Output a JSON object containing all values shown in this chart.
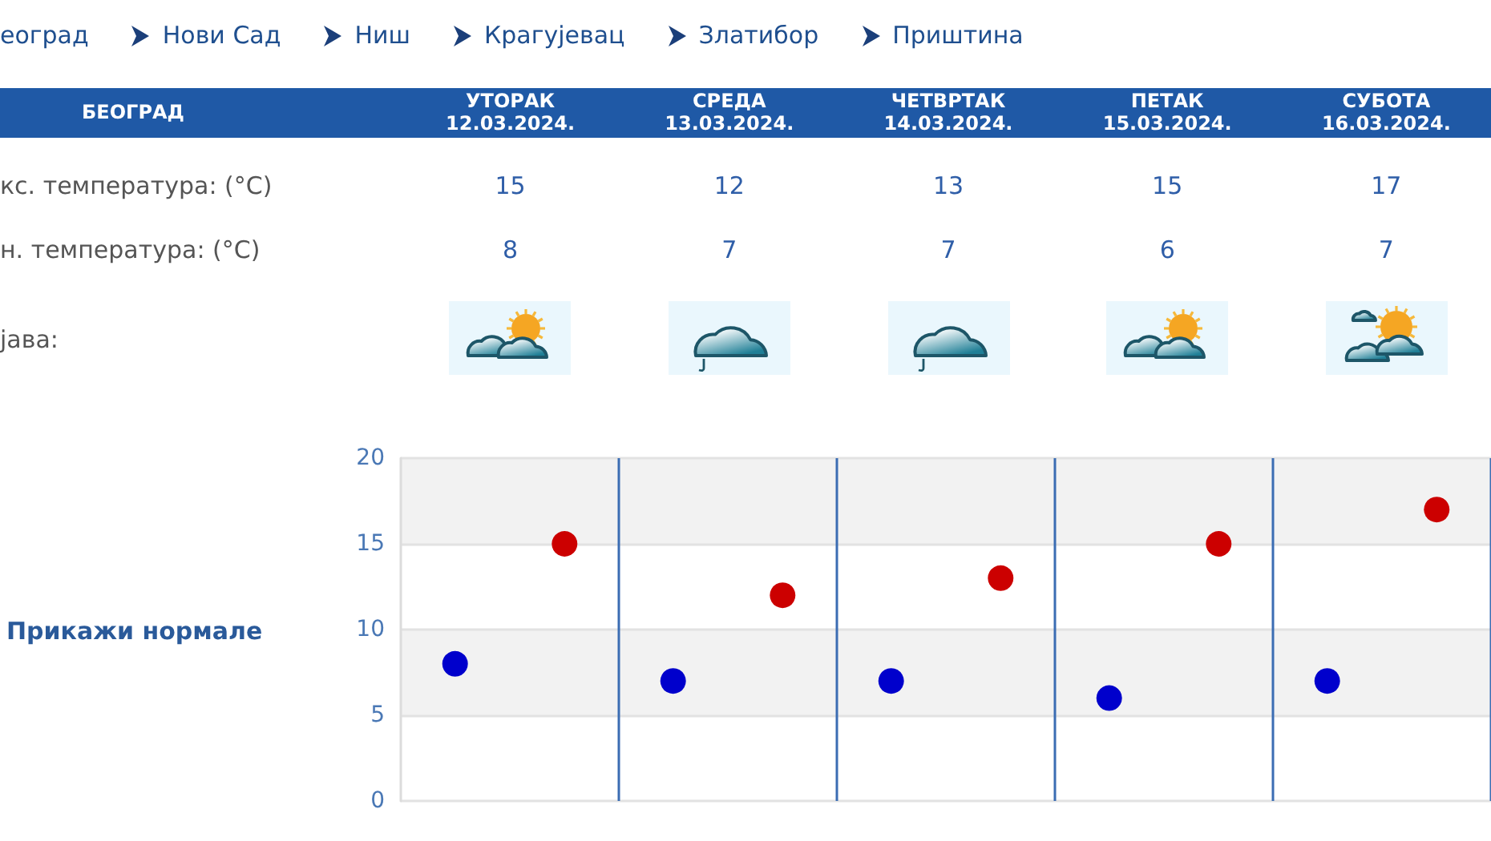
{
  "chart_data": {
    "type": "scatter",
    "categories": [
      null,
      null,
      null,
      null,
      null
    ],
    "series": [
      {
        "color": "#cc0000",
        "values": [
          15,
          12,
          13,
          15,
          17
        ]
      },
      {
        "color": "#0000cc",
        "values": [
          8,
          7,
          7,
          6,
          7
        ]
      }
    ],
    "ylim": [
      0,
      20
    ],
    "yticks": [
      0,
      5,
      10,
      15,
      20
    ],
    "grid": true,
    "marker": "circle",
    "data_labels": true,
    "annotations": [
      "еоград",
      "Нови Сад",
      "Ниш",
      "Крагујевац",
      "Златибор",
      "Приштина",
      "БЕОГРАД",
      "УТОРАК\n12.03.2024.",
      "СРЕДА\n13.03.2024.",
      "ЧЕТВРТАК\n14.03.2024.",
      "ПЕТАК\n15.03.2024.",
      "СУБОТА\n16.03.2024.",
      "кс. температура: (°C)",
      "н. температура: (°C)",
      "јава:",
      "Прикажи нормале"
    ]
  }
}
